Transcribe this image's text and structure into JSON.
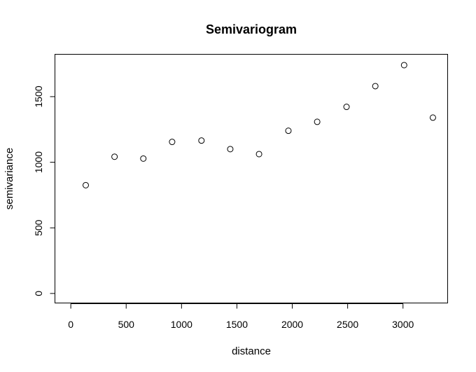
{
  "chart_data": {
    "type": "scatter",
    "title": "Semivariogram",
    "xlabel": "distance",
    "ylabel": "semivariance",
    "xlim": [
      -140,
      3400
    ],
    "ylim": [
      -70,
      1820
    ],
    "xticks": [
      0,
      500,
      1000,
      1500,
      2000,
      2500,
      3000
    ],
    "yticks": [
      0,
      500,
      1000,
      1500
    ],
    "xtick_labels": [
      "0",
      "500",
      "1000",
      "1500",
      "2000",
      "2500",
      "3000"
    ],
    "ytick_labels": [
      "0",
      "500",
      "1000",
      "1500"
    ],
    "grid": false,
    "marker": "open-circle",
    "points": [
      {
        "x": 135,
        "y": 825
      },
      {
        "x": 395,
        "y": 1042
      },
      {
        "x": 655,
        "y": 1028
      },
      {
        "x": 915,
        "y": 1155
      },
      {
        "x": 1180,
        "y": 1165
      },
      {
        "x": 1440,
        "y": 1100
      },
      {
        "x": 1700,
        "y": 1062
      },
      {
        "x": 1965,
        "y": 1240
      },
      {
        "x": 2225,
        "y": 1308
      },
      {
        "x": 2490,
        "y": 1422
      },
      {
        "x": 2750,
        "y": 1580
      },
      {
        "x": 3010,
        "y": 1740
      },
      {
        "x": 3270,
        "y": 1340
      }
    ]
  }
}
